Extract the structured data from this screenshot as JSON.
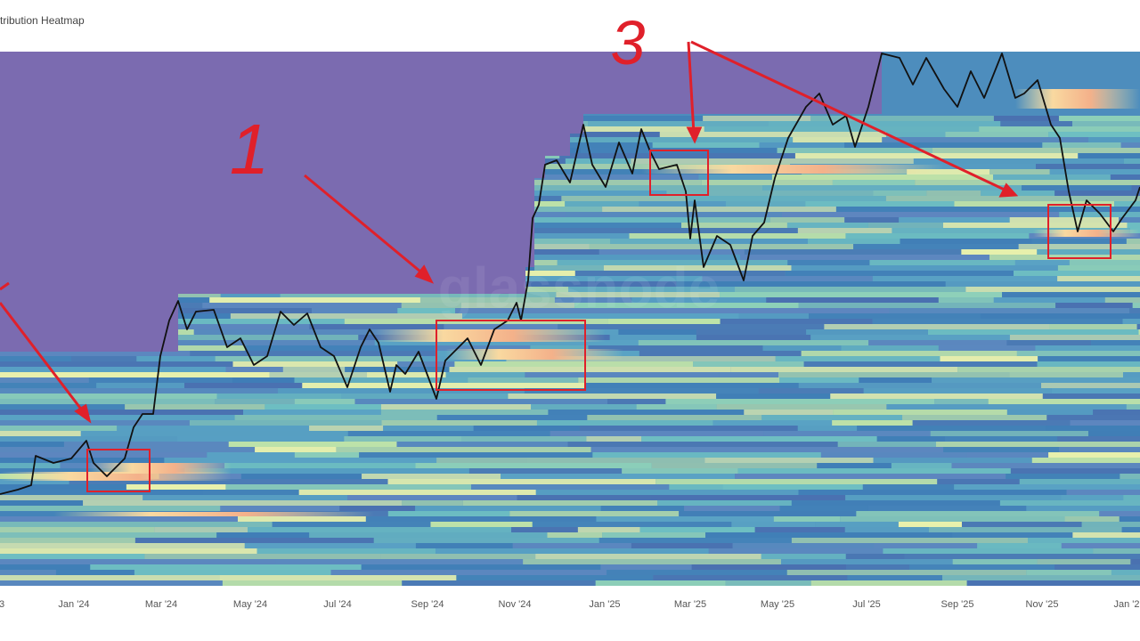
{
  "header": {
    "title": "tribution Heatmap"
  },
  "x_axis": {
    "labels": [
      "3",
      "Jan '24",
      "Mar '24",
      "May '24",
      "Jul '24",
      "Sep '24",
      "Nov '24",
      "Jan '25",
      "Mar '25",
      "May '25",
      "Jul '25",
      "Sep '25",
      "Nov '25",
      "Jan '2"
    ]
  },
  "watermark": "glassnode",
  "annotations": [
    "1",
    "3"
  ]
}
